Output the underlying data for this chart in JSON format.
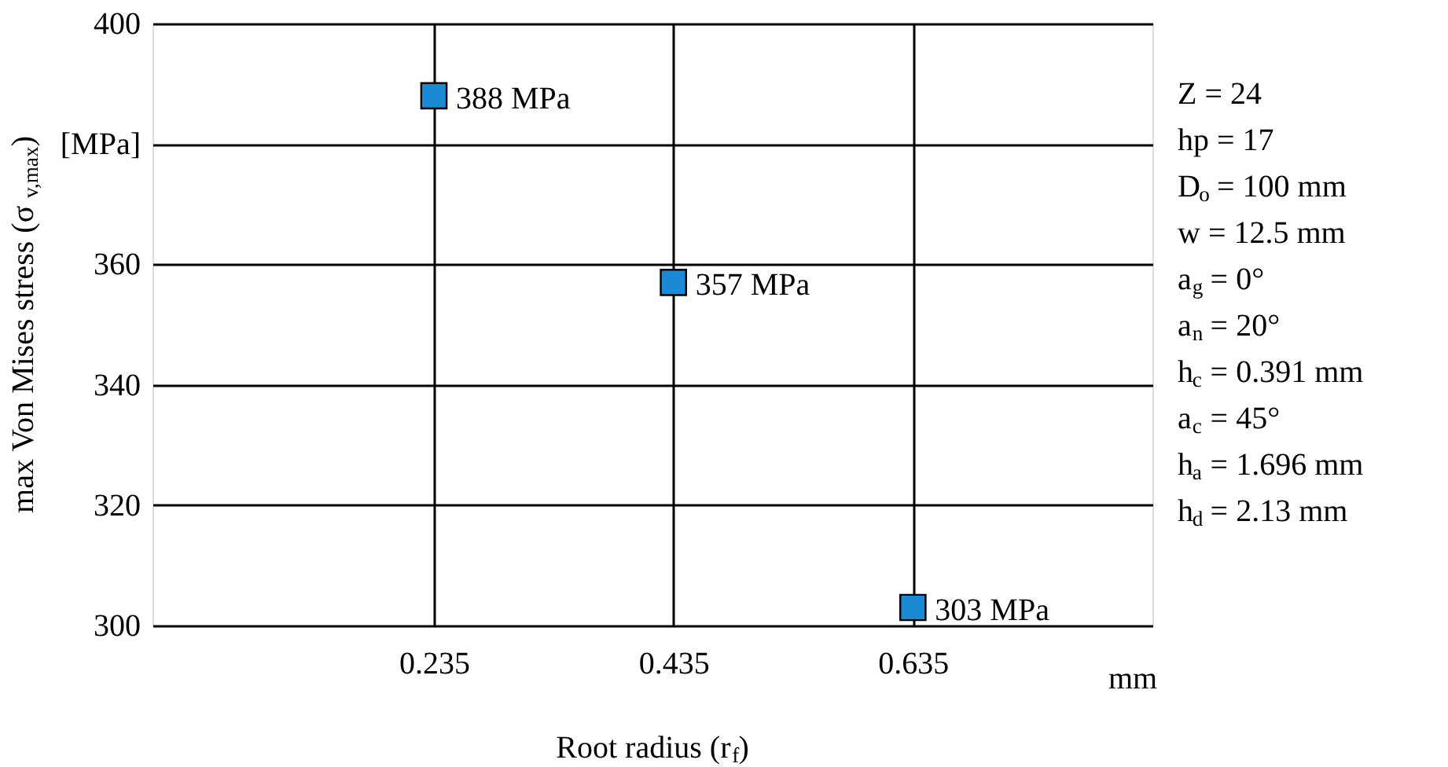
{
  "chart_data": {
    "type": "scatter",
    "xlabel": "Root radius (r$_{f}$)",
    "ylabel": "max Von Mises stress (σ$_{v,max}$)",
    "x": [
      0.235,
      0.435,
      0.635
    ],
    "series": [
      {
        "color": "#1a8ad4",
        "values": [
          388,
          357,
          303
        ],
        "value_labels": [
          "388 MPa",
          "357 MPa",
          "303 MPa"
        ]
      }
    ],
    "marker": "square",
    "xlim": [
      0,
      0.835
    ],
    "xticks": [
      0.235,
      0.435,
      0.635
    ],
    "ylim": [
      300,
      400
    ],
    "yticks": [
      300,
      320,
      340,
      360,
      {
        "value": 380,
        "label": "[MPa]"
      },
      400
    ],
    "grid": true,
    "legend": false,
    "annotations": [
      "Z = 24",
      "hp = 17",
      "D$_{o}$ = 100 mm",
      "w = 12.5 mm",
      "a$_{g}$ = 0°",
      "a$_{n}$ = 20°",
      "h$_{c}$ = 0.391 mm",
      "a$_{c}$ = 45°",
      "h$_{a}$ = 1.696 mm",
      "h$_{d}$ = 2.13 mm",
      "mm"
    ]
  }
}
